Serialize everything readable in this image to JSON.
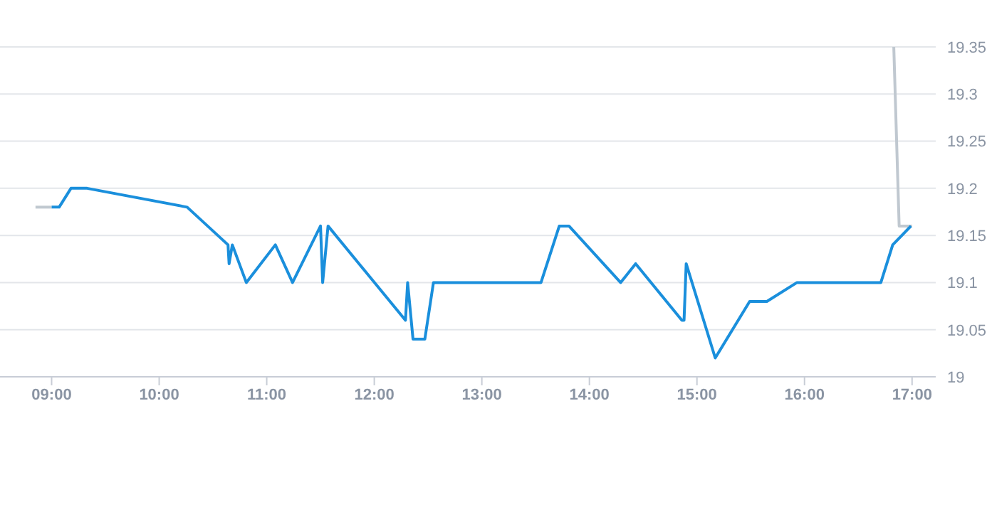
{
  "chart_data": {
    "type": "line",
    "xlim": [
      8.52,
      17.22
    ],
    "ylim": [
      19,
      19.35
    ],
    "xticks": [
      {
        "value": 9,
        "label": "09:00"
      },
      {
        "value": 10,
        "label": "10:00"
      },
      {
        "value": 11,
        "label": "11:00"
      },
      {
        "value": 12,
        "label": "12:00"
      },
      {
        "value": 13,
        "label": "13:00"
      },
      {
        "value": 14,
        "label": "14:00"
      },
      {
        "value": 15,
        "label": "15:00"
      },
      {
        "value": 16,
        "label": "16:00"
      },
      {
        "value": 17,
        "label": "17:00"
      }
    ],
    "yticks": [
      19,
      19.05,
      19.1,
      19.15,
      19.2,
      19.25,
      19.3,
      19.35
    ],
    "grid": "y",
    "marker": "none",
    "line_style": "solid",
    "series": [
      {
        "color": "#c0c8d0",
        "x": [
          8.85,
          9.0
        ],
        "values": [
          19.18,
          19.18
        ]
      },
      {
        "color": "#c0c8d0",
        "x": [
          16.83,
          16.88,
          17.0
        ],
        "values": [
          19.35,
          19.16,
          19.16
        ]
      },
      {
        "color": "#1a8fdc",
        "x": [
          9.0,
          9.07,
          9.18,
          9.33,
          10.26,
          10.64,
          10.65,
          10.68,
          10.81,
          11.08,
          11.24,
          11.5,
          11.52,
          11.57,
          12.29,
          12.31,
          12.36,
          12.47,
          12.55,
          13.55,
          13.72,
          13.81,
          14.29,
          14.43,
          14.86,
          14.88,
          14.9,
          15.17,
          15.49,
          15.65,
          15.93,
          16.71,
          16.82,
          16.99
        ],
        "values": [
          19.18,
          19.18,
          19.2,
          19.2,
          19.18,
          19.14,
          19.12,
          19.14,
          19.1,
          19.14,
          19.1,
          19.16,
          19.1,
          19.16,
          19.06,
          19.1,
          19.04,
          19.04,
          19.1,
          19.1,
          19.16,
          19.16,
          19.1,
          19.12,
          19.06,
          19.06,
          19.12,
          19.02,
          19.08,
          19.08,
          19.1,
          19.1,
          19.14,
          19.16
        ]
      }
    ]
  }
}
